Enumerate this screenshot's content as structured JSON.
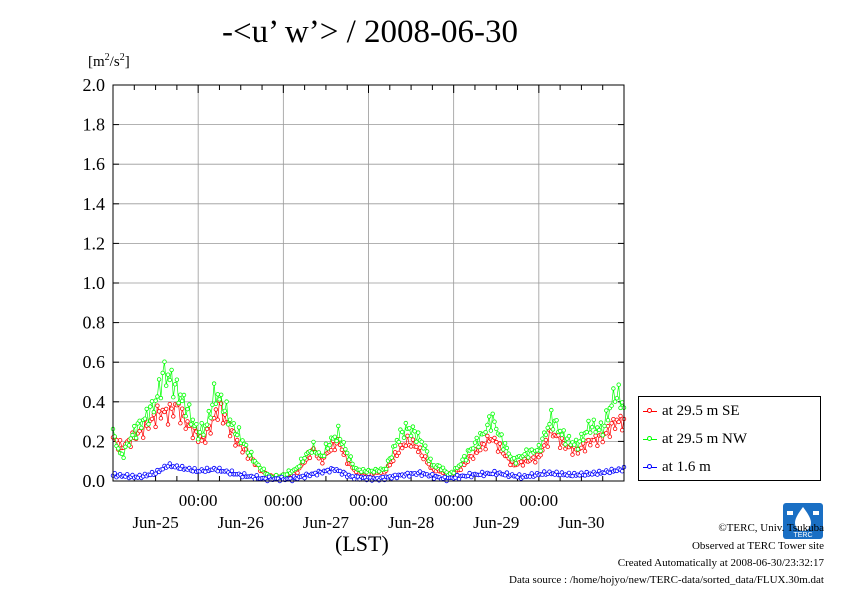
{
  "chart_data": {
    "type": "line",
    "title": "-<u’ w’> / 2008-06-30",
    "ylabel_unit": "[m2/s2]",
    "ylim": [
      0.0,
      2.0
    ],
    "y_ticks": [
      "0.0",
      "0.2",
      "0.4",
      "0.6",
      "0.8",
      "1.0",
      "1.2",
      "1.4",
      "1.6",
      "1.8",
      "2.0"
    ],
    "x_time_labels": [
      "00:00",
      "00:00",
      "00:00",
      "00:00",
      "00:00"
    ],
    "x_date_labels": [
      "Jun-25",
      "Jun-26",
      "Jun-27",
      "Jun-28",
      "Jun-29",
      "Jun-30"
    ],
    "xlabel": "(LST)",
    "grid": true,
    "x_range_days": [
      0,
      6
    ],
    "legend_position": "right",
    "series": [
      {
        "name": "at 29.5 m SE",
        "color": "#ff0000",
        "anchors": [
          [
            0,
            0.22
          ],
          [
            0.1,
            0.17
          ],
          [
            0.25,
            0.22
          ],
          [
            0.4,
            0.28
          ],
          [
            0.55,
            0.35
          ],
          [
            0.65,
            0.34
          ],
          [
            0.75,
            0.38
          ],
          [
            0.85,
            0.3
          ],
          [
            0.95,
            0.25
          ],
          [
            1.05,
            0.2
          ],
          [
            1.15,
            0.28
          ],
          [
            1.25,
            0.38
          ],
          [
            1.35,
            0.28
          ],
          [
            1.45,
            0.2
          ],
          [
            1.55,
            0.15
          ],
          [
            1.65,
            0.1
          ],
          [
            1.75,
            0.05
          ],
          [
            1.85,
            0.02
          ],
          [
            1.95,
            0.02
          ],
          [
            2.05,
            0.03
          ],
          [
            2.15,
            0.04
          ],
          [
            2.25,
            0.1
          ],
          [
            2.35,
            0.16
          ],
          [
            2.45,
            0.1
          ],
          [
            2.55,
            0.16
          ],
          [
            2.65,
            0.2
          ],
          [
            2.75,
            0.1
          ],
          [
            2.85,
            0.05
          ],
          [
            2.95,
            0.04
          ],
          [
            3.05,
            0.04
          ],
          [
            3.2,
            0.05
          ],
          [
            3.35,
            0.15
          ],
          [
            3.45,
            0.2
          ],
          [
            3.55,
            0.18
          ],
          [
            3.65,
            0.12
          ],
          [
            3.75,
            0.06
          ],
          [
            3.85,
            0.05
          ],
          [
            3.95,
            0.03
          ],
          [
            4.05,
            0.05
          ],
          [
            4.2,
            0.12
          ],
          [
            4.35,
            0.18
          ],
          [
            4.45,
            0.22
          ],
          [
            4.55,
            0.16
          ],
          [
            4.7,
            0.08
          ],
          [
            4.85,
            0.1
          ],
          [
            5.0,
            0.12
          ],
          [
            5.15,
            0.25
          ],
          [
            5.3,
            0.18
          ],
          [
            5.45,
            0.15
          ],
          [
            5.6,
            0.2
          ],
          [
            5.75,
            0.22
          ],
          [
            5.9,
            0.3
          ],
          [
            6.0,
            0.3
          ]
        ]
      },
      {
        "name": "at 29.5 m NW",
        "color": "#00ff00",
        "anchors": [
          [
            0,
            0.24
          ],
          [
            0.1,
            0.12
          ],
          [
            0.25,
            0.25
          ],
          [
            0.4,
            0.33
          ],
          [
            0.5,
            0.4
          ],
          [
            0.6,
            0.55
          ],
          [
            0.7,
            0.5
          ],
          [
            0.8,
            0.42
          ],
          [
            0.9,
            0.34
          ],
          [
            1.0,
            0.24
          ],
          [
            1.1,
            0.28
          ],
          [
            1.2,
            0.45
          ],
          [
            1.3,
            0.38
          ],
          [
            1.4,
            0.28
          ],
          [
            1.5,
            0.22
          ],
          [
            1.6,
            0.14
          ],
          [
            1.7,
            0.08
          ],
          [
            1.85,
            0.02
          ],
          [
            1.95,
            0.02
          ],
          [
            2.05,
            0.04
          ],
          [
            2.15,
            0.06
          ],
          [
            2.25,
            0.12
          ],
          [
            2.35,
            0.17
          ],
          [
            2.45,
            0.12
          ],
          [
            2.55,
            0.2
          ],
          [
            2.65,
            0.24
          ],
          [
            2.75,
            0.14
          ],
          [
            2.85,
            0.06
          ],
          [
            2.95,
            0.05
          ],
          [
            3.05,
            0.05
          ],
          [
            3.2,
            0.06
          ],
          [
            3.35,
            0.22
          ],
          [
            3.45,
            0.27
          ],
          [
            3.55,
            0.24
          ],
          [
            3.65,
            0.18
          ],
          [
            3.75,
            0.08
          ],
          [
            3.85,
            0.07
          ],
          [
            3.95,
            0.03
          ],
          [
            4.05,
            0.07
          ],
          [
            4.2,
            0.16
          ],
          [
            4.35,
            0.24
          ],
          [
            4.45,
            0.32
          ],
          [
            4.55,
            0.22
          ],
          [
            4.7,
            0.1
          ],
          [
            4.85,
            0.14
          ],
          [
            5.0,
            0.16
          ],
          [
            5.15,
            0.32
          ],
          [
            5.3,
            0.22
          ],
          [
            5.45,
            0.18
          ],
          [
            5.6,
            0.28
          ],
          [
            5.75,
            0.26
          ],
          [
            5.9,
            0.45
          ],
          [
            6.0,
            0.38
          ]
        ]
      },
      {
        "name": "at 1.6 m",
        "color": "#0000ff",
        "anchors": [
          [
            0,
            0.03
          ],
          [
            0.3,
            0.02
          ],
          [
            0.5,
            0.04
          ],
          [
            0.65,
            0.08
          ],
          [
            0.75,
            0.07
          ],
          [
            1.0,
            0.05
          ],
          [
            1.2,
            0.06
          ],
          [
            1.5,
            0.03
          ],
          [
            1.8,
            0.01
          ],
          [
            2.1,
            0.01
          ],
          [
            2.3,
            0.03
          ],
          [
            2.6,
            0.06
          ],
          [
            2.8,
            0.02
          ],
          [
            3.1,
            0.01
          ],
          [
            3.4,
            0.03
          ],
          [
            3.6,
            0.04
          ],
          [
            3.9,
            0.01
          ],
          [
            4.2,
            0.03
          ],
          [
            4.5,
            0.04
          ],
          [
            4.8,
            0.02
          ],
          [
            5.1,
            0.04
          ],
          [
            5.4,
            0.03
          ],
          [
            5.7,
            0.04
          ],
          [
            6.0,
            0.06
          ]
        ]
      }
    ]
  },
  "credits": {
    "copyright": "©TERC, Univ. Tsukuba",
    "observed": "Observed at TERC Tower site",
    "created": "Created Automatically at 2008-06-30/23:32:17",
    "source": "Data source : /home/hojyo/new/TERC-data/sorted_data/FLUX.30m.dat",
    "logo_text": "TERC"
  }
}
